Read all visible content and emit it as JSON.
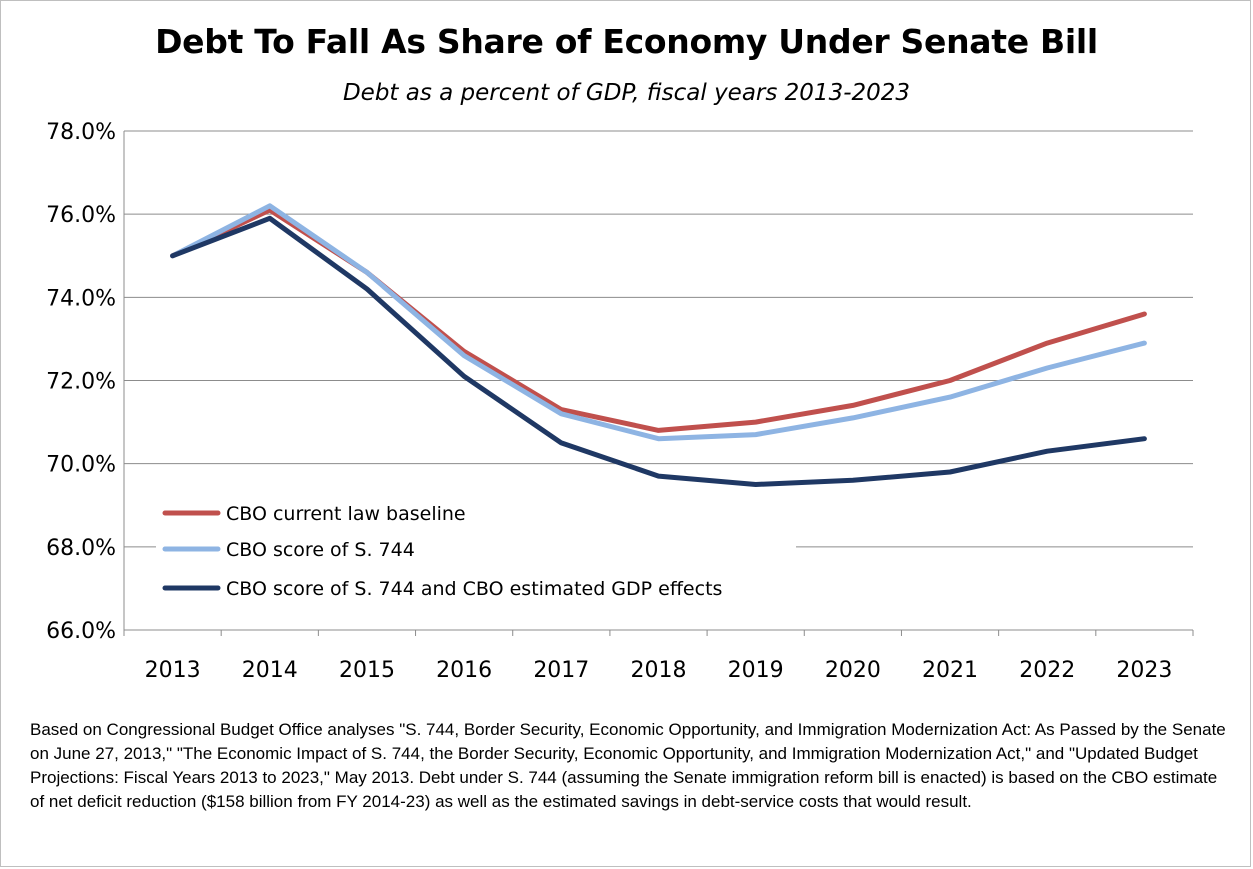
{
  "title": "Debt To Fall As Share of Economy Under Senate Bill",
  "subtitle": "Debt as a percent of GDP, fiscal years 2013-2023",
  "footnote": "Based on Congressional Budget Office analyses  \"S. 744,  Border Security, Economic Opportunity, and Immigration Modernization Act: As Passed by the Senate on June 27, 2013,\"  \"The Economic Impact of S. 744,  the Border Security, Economic Opportunity, and Immigration Modernization Act,\" and \"Updated Budget Projections: Fiscal Years 2013  to 2023,\" May 2013.  Debt under S. 744  (assuming the Senate immigration reform bill is enacted) is based on  the CBO estimate of net deficit reduction ($158 billion from FY 2014-23)  as well as the estimated savings in debt-service costs that would result.",
  "chart_data": {
    "type": "line",
    "title": "Debt To Fall As Share of Economy Under Senate Bill",
    "subtitle": "Debt as a percent of GDP, fiscal years 2013-2023",
    "xlabel": "",
    "ylabel": "",
    "x": [
      "2013",
      "2014",
      "2015",
      "2016",
      "2017",
      "2018",
      "2019",
      "2020",
      "2021",
      "2022",
      "2023"
    ],
    "ylim": [
      66.0,
      78.0
    ],
    "yticks": [
      66.0,
      68.0,
      70.0,
      72.0,
      74.0,
      76.0,
      78.0
    ],
    "ytick_labels": [
      "66.0%",
      "68.0%",
      "70.0%",
      "72.0%",
      "74.0%",
      "76.0%",
      "78.0%"
    ],
    "grid": true,
    "legend_position": "lower-left",
    "series": [
      {
        "name": "CBO current law baseline",
        "color": "#c0504d",
        "values": [
          75.0,
          76.1,
          74.6,
          72.7,
          71.3,
          70.8,
          71.0,
          71.4,
          72.0,
          72.9,
          73.6
        ]
      },
      {
        "name": "CBO score of S. 744",
        "color": "#8eb4e3",
        "values": [
          75.0,
          76.2,
          74.6,
          72.6,
          71.2,
          70.6,
          70.7,
          71.1,
          71.6,
          72.3,
          72.9
        ]
      },
      {
        "name": "CBO score of S. 744 and CBO estimated GDP effects",
        "color": "#1f3864",
        "values": [
          75.0,
          75.9,
          74.2,
          72.1,
          70.5,
          69.7,
          69.5,
          69.6,
          69.8,
          70.3,
          70.6
        ]
      }
    ]
  }
}
